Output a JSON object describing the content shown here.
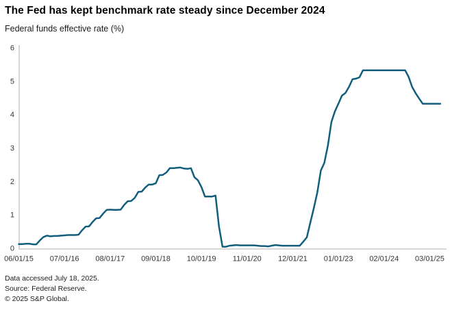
{
  "header": {
    "title": "The Fed has kept benchmark rate steady since December 2024",
    "subtitle": "Federal funds effective rate (%)"
  },
  "footer": {
    "accessed": "Data accessed July 18, 2025.",
    "source": "Source: Federal Reserve.",
    "copyright": "© 2025 S&P Global."
  },
  "colors": {
    "line": "#115e7c",
    "axis": "#d2d2d2",
    "tick_text": "#333333"
  },
  "chart_data": {
    "type": "line",
    "title": "The Fed has kept benchmark rate steady since December 2024",
    "xlabel": "",
    "ylabel": "Federal funds effective rate (%)",
    "ylim": [
      0,
      6
    ],
    "y_ticks": [
      0,
      1,
      2,
      3,
      4,
      5,
      6
    ],
    "grid": false,
    "legend_position": "none",
    "x_tick_labels": [
      "06/01/15",
      "07/01/16",
      "08/01/17",
      "09/01/18",
      "10/01/19",
      "11/01/20",
      "12/01/21",
      "01/01/23",
      "02/01/24",
      "03/01/25"
    ],
    "x_tick_month_offsets": [
      0,
      13,
      26,
      39,
      52,
      65,
      78,
      91,
      104,
      117
    ],
    "series": [
      {
        "name": "Federal funds effective rate (%)",
        "start_label": "06/01/15",
        "cadence": "monthly",
        "values": [
          0.13,
          0.13,
          0.14,
          0.14,
          0.12,
          0.12,
          0.24,
          0.34,
          0.38,
          0.36,
          0.37,
          0.37,
          0.38,
          0.39,
          0.4,
          0.4,
          0.4,
          0.41,
          0.54,
          0.65,
          0.66,
          0.79,
          0.9,
          0.91,
          1.04,
          1.15,
          1.16,
          1.15,
          1.15,
          1.16,
          1.3,
          1.41,
          1.42,
          1.51,
          1.69,
          1.7,
          1.82,
          1.91,
          1.91,
          1.95,
          2.19,
          2.2,
          2.27,
          2.4,
          2.4,
          2.41,
          2.42,
          2.39,
          2.38,
          2.4,
          2.13,
          2.04,
          1.83,
          1.55,
          1.55,
          1.55,
          1.58,
          0.65,
          0.05,
          0.05,
          0.08,
          0.09,
          0.1,
          0.09,
          0.09,
          0.09,
          0.09,
          0.09,
          0.08,
          0.07,
          0.07,
          0.06,
          0.08,
          0.1,
          0.09,
          0.08,
          0.08,
          0.08,
          0.08,
          0.08,
          0.08,
          0.2,
          0.33,
          0.77,
          1.21,
          1.68,
          2.33,
          2.56,
          3.08,
          3.78,
          4.1,
          4.33,
          4.57,
          4.65,
          4.83,
          5.06,
          5.08,
          5.12,
          5.33,
          5.33,
          5.33,
          5.33,
          5.33,
          5.33,
          5.33,
          5.33,
          5.33,
          5.33,
          5.33,
          5.33,
          5.33,
          5.13,
          4.83,
          4.64,
          4.48,
          4.33,
          4.33,
          4.33,
          4.33,
          4.33,
          4.33
        ]
      }
    ]
  }
}
